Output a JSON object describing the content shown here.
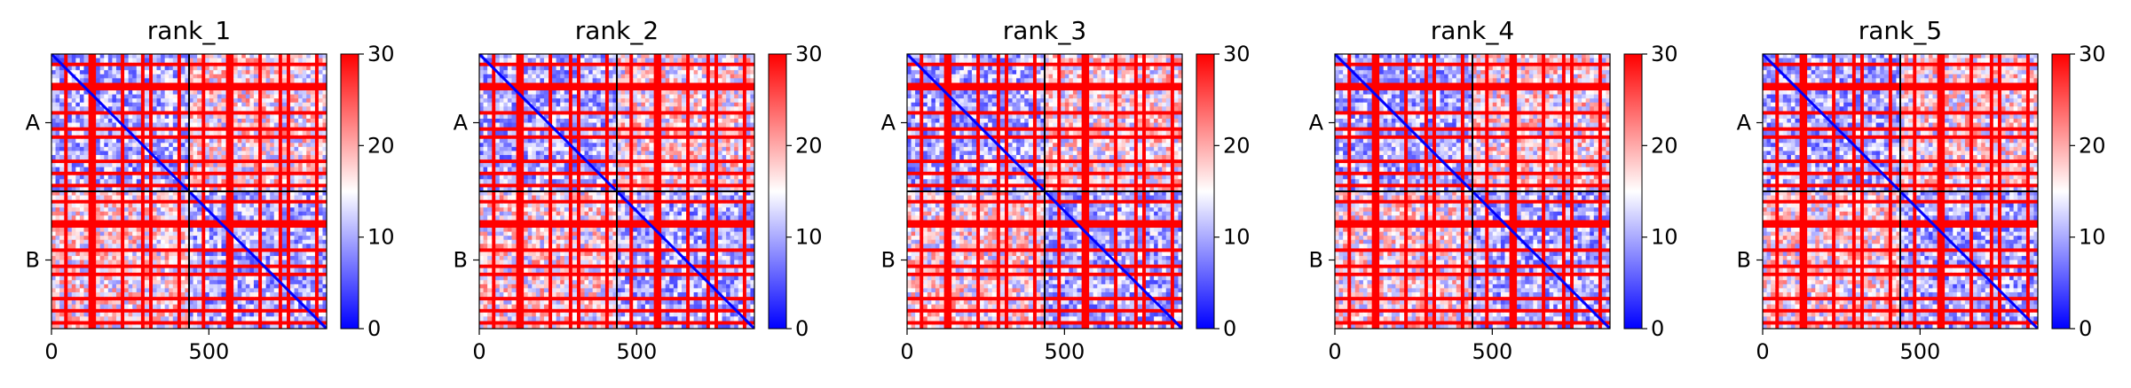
{
  "figure": {
    "background": "#ffffff"
  },
  "chart_data": [
    {
      "type": "heatmap",
      "title": "rank_1",
      "xlabel": "",
      "ylabel": "",
      "xticks": [
        0,
        500
      ],
      "chains": [
        "A",
        "B"
      ],
      "chain_boundary": 437,
      "xlim": [
        0,
        874
      ],
      "ylim": [
        874,
        0
      ],
      "colorbar": {
        "min": 0,
        "max": 30,
        "ticks": [
          0,
          10,
          20,
          30
        ],
        "colors": [
          "#0000ff",
          "#ffffff",
          "#ff0000"
        ]
      }
    },
    {
      "type": "heatmap",
      "title": "rank_2",
      "xlabel": "",
      "ylabel": "",
      "xticks": [
        0,
        500
      ],
      "chains": [
        "A",
        "B"
      ],
      "chain_boundary": 437,
      "xlim": [
        0,
        874
      ],
      "ylim": [
        874,
        0
      ],
      "colorbar": {
        "min": 0,
        "max": 30,
        "ticks": [
          0,
          10,
          20,
          30
        ],
        "colors": [
          "#0000ff",
          "#ffffff",
          "#ff0000"
        ]
      }
    },
    {
      "type": "heatmap",
      "title": "rank_3",
      "xlabel": "",
      "ylabel": "",
      "xticks": [
        0,
        500
      ],
      "chains": [
        "A",
        "B"
      ],
      "chain_boundary": 437,
      "xlim": [
        0,
        874
      ],
      "ylim": [
        874,
        0
      ],
      "colorbar": {
        "min": 0,
        "max": 30,
        "ticks": [
          0,
          10,
          20,
          30
        ],
        "colors": [
          "#0000ff",
          "#ffffff",
          "#ff0000"
        ]
      }
    },
    {
      "type": "heatmap",
      "title": "rank_4",
      "xlabel": "",
      "ylabel": "",
      "xticks": [
        0,
        500
      ],
      "chains": [
        "A",
        "B"
      ],
      "chain_boundary": 437,
      "xlim": [
        0,
        874
      ],
      "ylim": [
        874,
        0
      ],
      "colorbar": {
        "min": 0,
        "max": 30,
        "ticks": [
          0,
          10,
          20,
          30
        ],
        "colors": [
          "#0000ff",
          "#ffffff",
          "#ff0000"
        ]
      }
    },
    {
      "type": "heatmap",
      "title": "rank_5",
      "xlabel": "",
      "ylabel": "",
      "xticks": [
        0,
        500
      ],
      "chains": [
        "A",
        "B"
      ],
      "chain_boundary": 437,
      "xlim": [
        0,
        874
      ],
      "ylim": [
        874,
        0
      ],
      "colorbar": {
        "min": 0,
        "max": 30,
        "ticks": [
          0,
          10,
          20,
          30
        ],
        "colors": [
          "#0000ff",
          "#ffffff",
          "#ff0000"
        ]
      }
    }
  ]
}
